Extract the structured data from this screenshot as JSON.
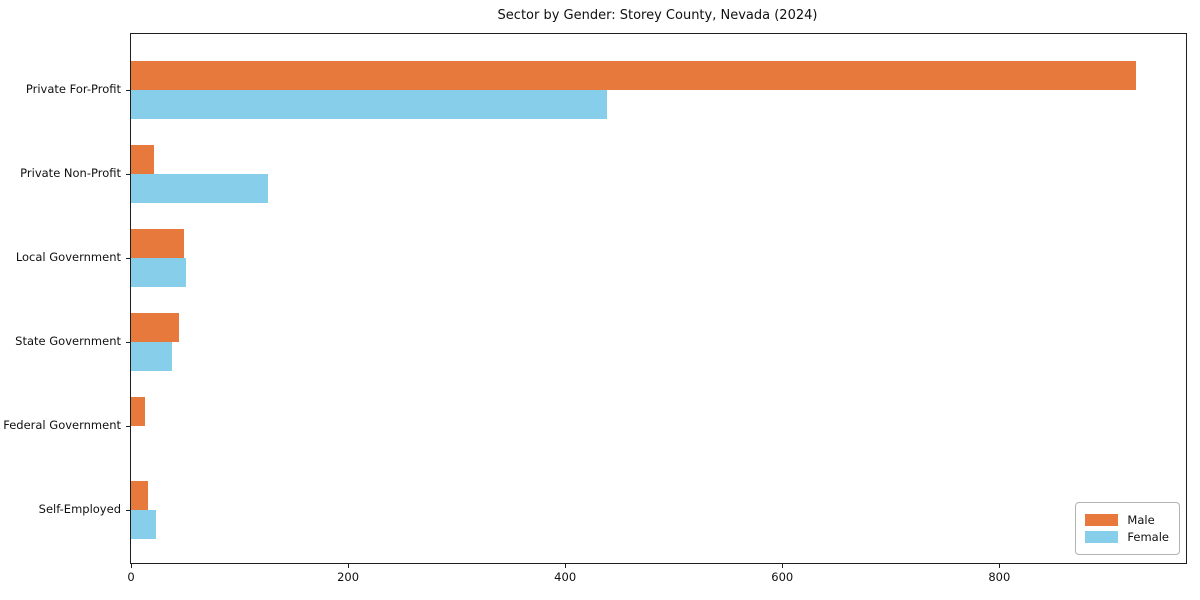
{
  "title": "Sector by Gender: Storey County, Nevada (2024)",
  "colors": {
    "male": "#E8793D",
    "female": "#87CEEB",
    "axis": "#1F1F1F",
    "legend_border": "#B3B3B3"
  },
  "legend": {
    "position": "lower right"
  },
  "chart_data": {
    "type": "bar",
    "orientation": "horizontal",
    "title": "Sector by Gender: Storey County, Nevada (2024)",
    "categories": [
      "Private For-Profit",
      "Private Non-Profit",
      "Local Government",
      "State Government",
      "Federal Government",
      "Self-Employed"
    ],
    "series": [
      {
        "name": "Male",
        "color": "#E8793D",
        "values": [
          926,
          21,
          49,
          44,
          13,
          16
        ]
      },
      {
        "name": "Female",
        "color": "#87CEEB",
        "values": [
          439,
          126,
          51,
          38,
          0,
          23
        ]
      }
    ],
    "xlabel": "",
    "ylabel": "",
    "xlim": [
      0,
      972
    ],
    "x_ticks": [
      0,
      200,
      400,
      600,
      800
    ],
    "grid": false,
    "legend_position": "lower right"
  }
}
